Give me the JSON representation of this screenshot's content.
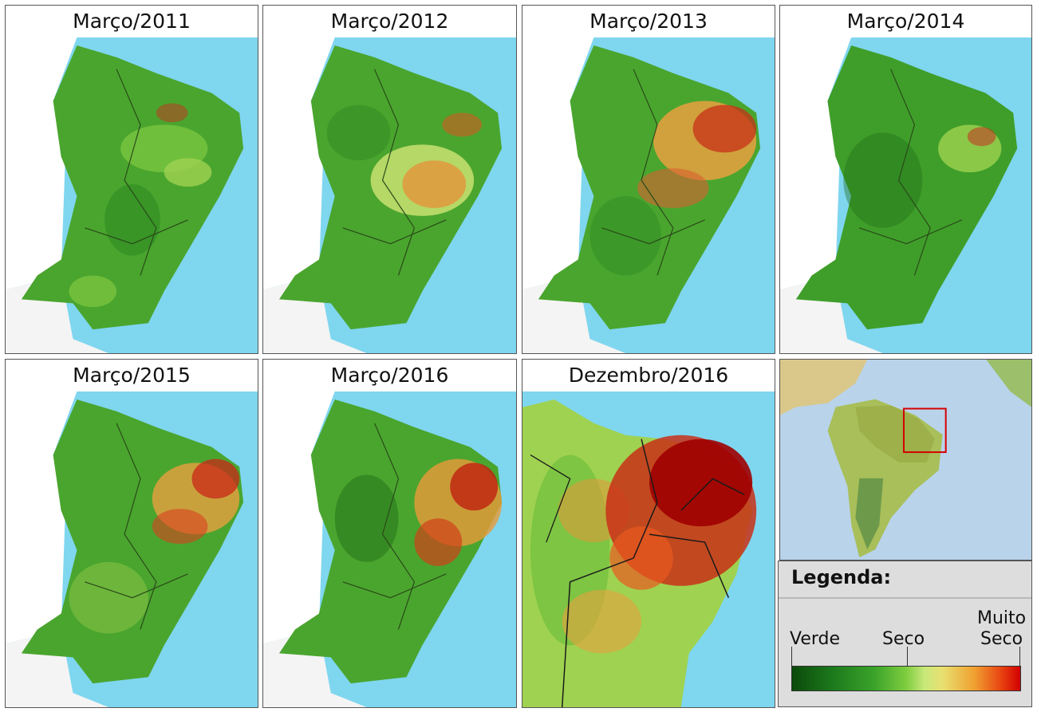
{
  "panels": [
    {
      "title": "Março/2011"
    },
    {
      "title": "Março/2012"
    },
    {
      "title": "Março/2013"
    },
    {
      "title": "Março/2014"
    },
    {
      "title": "Março/2015"
    },
    {
      "title": "Março/2016"
    },
    {
      "title": "Dezembro/2016"
    }
  ],
  "legend": {
    "title": "Legenda:",
    "verde": "Verde",
    "seco": "Seco",
    "muito": "Muito",
    "muito_seco": "Seco"
  },
  "colors": {
    "ocean": "#7fd6ef",
    "land_neighbor": "#ffffff",
    "green": "#3f9e2a",
    "dark_green": "#1f6b16",
    "dry": "#e8983a",
    "very_dry": "#b80000"
  }
}
